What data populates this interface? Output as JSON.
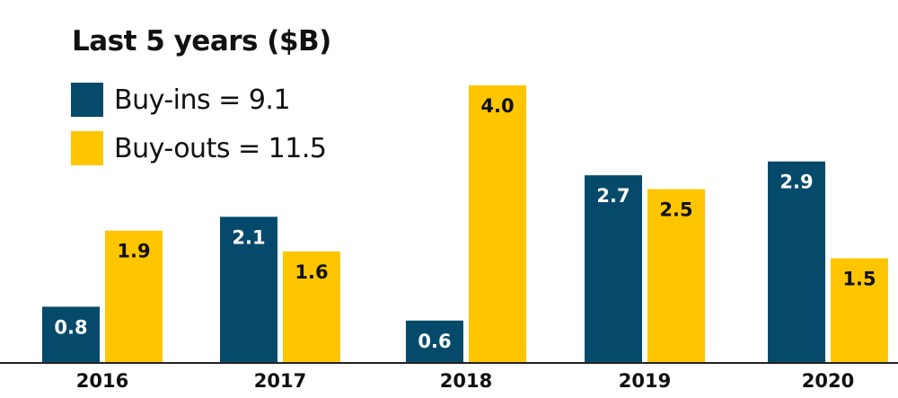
{
  "chart_data": {
    "type": "bar",
    "title": "Last 5 years ($B)",
    "categories": [
      "2016",
      "2017",
      "2018",
      "2019",
      "2020"
    ],
    "series": [
      {
        "name": "Buy-ins = 9.1",
        "color": "#064a6b",
        "values": [
          0.8,
          2.1,
          0.6,
          2.7,
          2.9
        ],
        "labels": [
          "0.8",
          "2.1",
          "0.6",
          "2.7",
          "2.9"
        ]
      },
      {
        "name": "Buy-outs = 11.5",
        "color": "#ffc600",
        "values": [
          1.9,
          1.6,
          4.0,
          2.5,
          1.5
        ],
        "labels": [
          "1.9",
          "1.6",
          "4.0",
          "2.5",
          "1.5"
        ]
      }
    ],
    "ylim": [
      0,
      4.0
    ],
    "grid": false,
    "legend": "top-left"
  }
}
